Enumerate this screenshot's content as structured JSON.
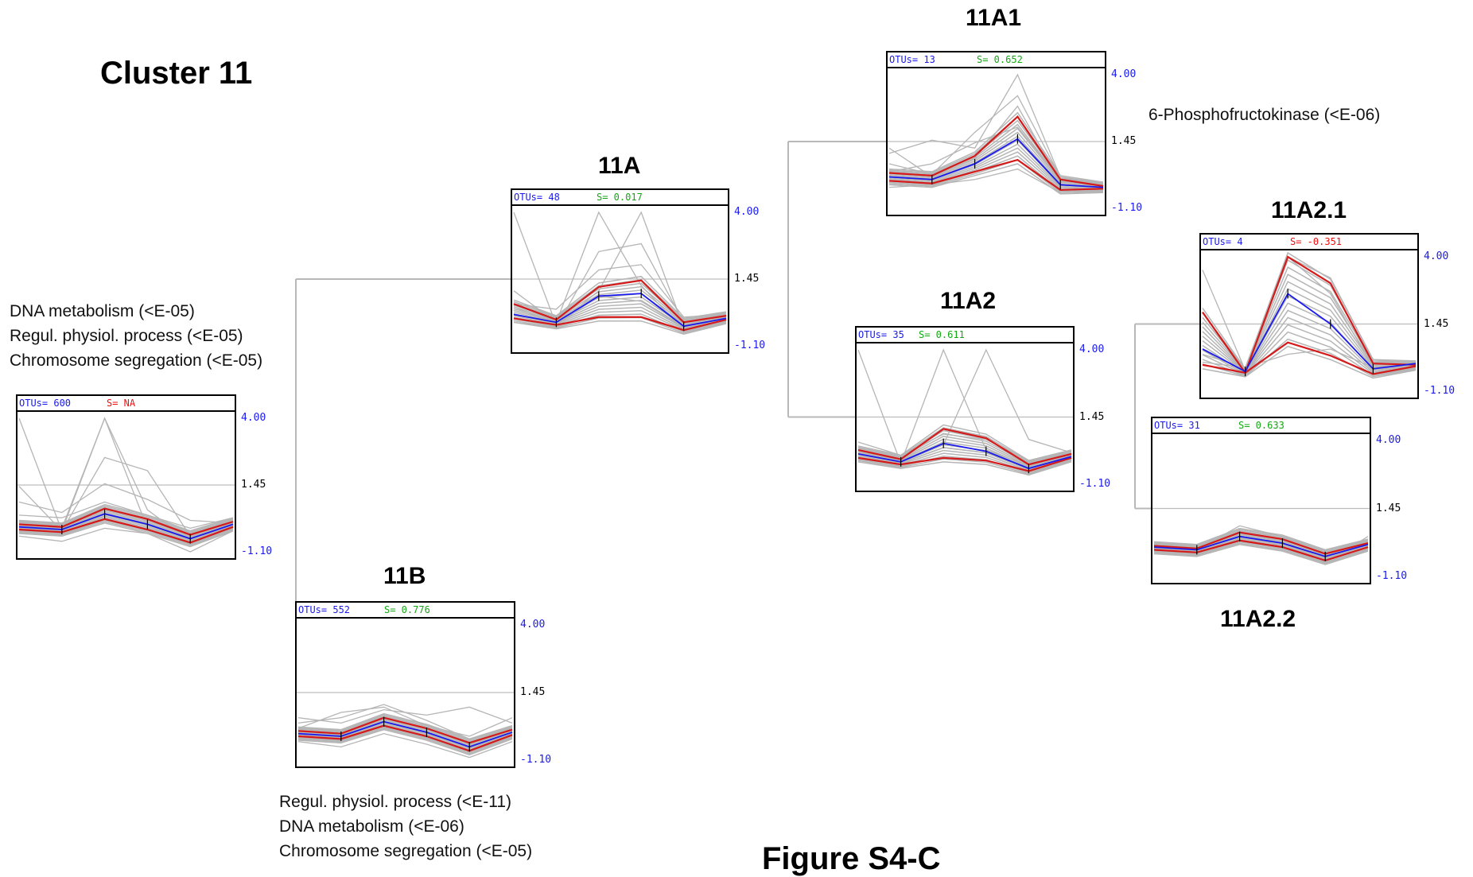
{
  "cluster_title": "Cluster 11",
  "figure_title": "Figure S4-C",
  "colors": {
    "otus_text": "#1a1aee",
    "score_green": "#13a813",
    "score_red": "#ee1111",
    "series_gray": "#b5b5b5",
    "median_blue": "#1a1aee",
    "quartile_red": "#d41a1a",
    "connector": "#b8b8b8",
    "axis_tick_blue": "#1a1aee",
    "axis_tick_black": "#000000"
  },
  "annotations": {
    "root": [
      "DNA metabolism (<E-05)",
      "Regul. physiol. process (<E-05)",
      "Chromosome segregation (<E-05)"
    ],
    "n11B": [
      "Regul. physiol. process (<E-11)",
      "DNA metabolism (<E-06)",
      "Chromosome segregation (<E-05)"
    ],
    "n11A1": [
      "6-Phosphofructokinase (<E-06)"
    ]
  },
  "chart_data": [
    {
      "id": "root",
      "type": "line",
      "title": "",
      "header_otus": "OTUs= 600",
      "header_score": "S= NA",
      "score_color": "red",
      "y_ticks": [
        "4.00",
        "1.45",
        "-1.10"
      ],
      "ylim": [
        -1.1,
        4.0
      ],
      "x": [
        1,
        2,
        3,
        4,
        5,
        6
      ],
      "median": [
        -0.15,
        -0.25,
        0.35,
        -0.05,
        -0.6,
        -0.05
      ],
      "upper": [
        -0.05,
        -0.15,
        0.55,
        0.15,
        -0.45,
        0.05
      ],
      "lower": [
        -0.25,
        -0.35,
        0.15,
        -0.25,
        -0.75,
        -0.15
      ],
      "gray_profiles": [
        [
          4.0,
          -0.3,
          4.0,
          -0.2,
          -0.6,
          0
        ],
        [
          -0.1,
          -0.2,
          4.0,
          0.5,
          -0.7,
          0
        ],
        [
          1.4,
          -0.3,
          2.5,
          2.0,
          -0.5,
          -0.1
        ],
        [
          0.3,
          0.2,
          0.8,
          0.3,
          -0.2,
          0.2
        ],
        [
          0.8,
          0.4,
          1.5,
          0.9,
          0.1,
          0
        ],
        [
          -0.5,
          -0.7,
          -0.2,
          -0.4,
          -1.1,
          -0.3
        ]
      ]
    },
    {
      "id": "11A",
      "type": "line",
      "title": "11A",
      "header_otus": "OTUs= 48",
      "header_score": "S= 0.017",
      "score_color": "green",
      "y_ticks": [
        "4.00",
        "1.45",
        "-1.10"
      ],
      "ylim": [
        -1.1,
        4.0
      ],
      "x": [
        1,
        2,
        3,
        4,
        5,
        6
      ],
      "median": [
        0.1,
        -0.2,
        0.8,
        0.9,
        -0.35,
        -0.05
      ],
      "upper": [
        0.5,
        -0.1,
        1.15,
        1.4,
        -0.2,
        0.05
      ],
      "lower": [
        -0.05,
        -0.3,
        0.0,
        0.0,
        -0.5,
        -0.1
      ],
      "gray_profiles": [
        [
          4.0,
          -0.3,
          0.8,
          0.6,
          -0.4,
          0
        ],
        [
          1.0,
          -0.2,
          4.0,
          1.2,
          -0.5,
          0
        ],
        [
          0.4,
          -0.3,
          1.0,
          4.0,
          -0.4,
          0
        ],
        [
          -0.2,
          -0.4,
          2.5,
          2.8,
          -0.2,
          0.1
        ],
        [
          0.5,
          0.3,
          1.8,
          2.0,
          0,
          0.1
        ]
      ]
    },
    {
      "id": "11B",
      "type": "line",
      "title": "11B",
      "header_otus": "OTUs= 552",
      "header_score": "S= 0.776",
      "score_color": "green",
      "y_ticks": [
        "4.00",
        "1.45",
        "-1.10"
      ],
      "ylim": [
        -1.1,
        4.0
      ],
      "x": [
        1,
        2,
        3,
        4,
        5,
        6
      ],
      "median": [
        -0.1,
        -0.2,
        0.35,
        -0.05,
        -0.6,
        -0.05
      ],
      "upper": [
        0.0,
        -0.1,
        0.5,
        0.1,
        -0.45,
        0.05
      ],
      "lower": [
        -0.2,
        -0.3,
        0.2,
        -0.2,
        -0.75,
        -0.15
      ],
      "gray_profiles": [
        [
          0.3,
          0.5,
          1.0,
          0.4,
          -0.3,
          0.2
        ],
        [
          0.1,
          0.7,
          0.9,
          0.2,
          -0.2,
          0.5
        ],
        [
          -0.4,
          -0.6,
          -0.1,
          -0.5,
          -1.0,
          -0.4
        ],
        [
          0.5,
          0.3,
          0.8,
          0.6,
          0.9,
          0.3
        ]
      ]
    },
    {
      "id": "11A1",
      "type": "line",
      "title": "11A1",
      "header_otus": "OTUs= 13",
      "header_score": "S= 0.652",
      "score_color": "green",
      "y_ticks": [
        "4.00",
        "1.45",
        "-1.10"
      ],
      "ylim": [
        -1.1,
        4.0
      ],
      "x": [
        1,
        2,
        3,
        4,
        5,
        6
      ],
      "median": [
        0.1,
        0.0,
        0.6,
        1.55,
        -0.2,
        -0.3
      ],
      "upper": [
        0.25,
        0.15,
        0.9,
        2.4,
        0.0,
        -0.25
      ],
      "lower": [
        -0.05,
        -0.15,
        0.3,
        0.75,
        -0.4,
        -0.35
      ],
      "gray_profiles": [
        [
          1.0,
          1.5,
          1.2,
          4.0,
          0.1,
          -0.2
        ],
        [
          0.6,
          0.2,
          1.8,
          3.2,
          0.1,
          -0.3
        ],
        [
          1.2,
          0.1,
          0.8,
          2.8,
          -0.1,
          -0.3
        ],
        [
          0.3,
          0.6,
          1.4,
          2.0,
          0.0,
          -0.2
        ],
        [
          -0.3,
          -0.2,
          0.0,
          0.4,
          -0.5,
          -0.3
        ]
      ]
    },
    {
      "id": "11A2",
      "type": "line",
      "title": "11A2",
      "header_otus": "OTUs= 35",
      "header_score": "S= 0.611",
      "score_color": "green",
      "y_ticks": [
        "4.00",
        "1.45",
        "-1.10"
      ],
      "ylim": [
        -1.1,
        4.0
      ],
      "x": [
        1,
        2,
        3,
        4,
        5,
        6
      ],
      "median": [
        0.05,
        -0.25,
        0.45,
        0.15,
        -0.5,
        -0.05
      ],
      "upper": [
        0.2,
        -0.15,
        1.0,
        0.65,
        -0.35,
        0.05
      ],
      "lower": [
        -0.1,
        -0.35,
        -0.1,
        -0.2,
        -0.6,
        -0.1
      ],
      "gray_profiles": [
        [
          4.0,
          -0.3,
          0.3,
          0.1,
          -0.5,
          0
        ],
        [
          0.2,
          -0.3,
          4.0,
          0.2,
          -0.4,
          0
        ],
        [
          0.1,
          -0.2,
          0.4,
          4.0,
          0.6,
          0.1
        ],
        [
          0.5,
          0.0,
          0.8,
          0.6,
          -0.2,
          0.2
        ]
      ]
    },
    {
      "id": "11A2.1",
      "type": "line",
      "title": "11A2.1",
      "header_otus": "OTUs= 4",
      "header_score": "S= -0.351",
      "score_color": "red",
      "y_ticks": [
        "4.00",
        "1.45",
        "-1.10"
      ],
      "ylim": [
        -1.1,
        4.0
      ],
      "x": [
        1,
        2,
        3,
        4,
        5,
        6
      ],
      "median": [
        0.5,
        -0.35,
        2.6,
        1.45,
        -0.25,
        -0.05
      ],
      "upper": [
        1.9,
        -0.4,
        4.0,
        3.0,
        -0.05,
        -0.1
      ],
      "lower": [
        -0.1,
        -0.4,
        0.75,
        0.25,
        -0.45,
        -0.15
      ],
      "gray_profiles": [
        [
          3.5,
          -0.3,
          4.0,
          2.6,
          -0.2,
          -0.1
        ],
        [
          0.0,
          -0.2,
          0.3,
          0.5,
          -0.2,
          -0.1
        ],
        [
          0.3,
          -0.2,
          4.0,
          3.2,
          0.1,
          0.0
        ]
      ]
    },
    {
      "id": "11A2.2",
      "type": "line",
      "title": "11A2.2",
      "header_otus": "OTUs= 31",
      "header_score": "S= 0.633",
      "score_color": "green",
      "y_ticks": [
        "4.00",
        "1.45",
        "-1.10"
      ],
      "ylim": [
        -1.1,
        4.0
      ],
      "x": [
        1,
        2,
        3,
        4,
        5,
        6
      ],
      "median": [
        0.0,
        -0.1,
        0.4,
        0.15,
        -0.35,
        0.1
      ],
      "upper": [
        0.05,
        -0.05,
        0.55,
        0.3,
        -0.25,
        0.15
      ],
      "lower": [
        -0.1,
        -0.2,
        0.25,
        0.0,
        -0.5,
        0.0
      ],
      "gray_profiles": [
        [
          0.1,
          -0.1,
          0.8,
          0.4,
          -0.2,
          0.2
        ],
        [
          -0.1,
          -0.2,
          0.2,
          0.3,
          -0.6,
          0.4
        ],
        [
          0.0,
          0.0,
          0.6,
          0.0,
          -0.4,
          0.1
        ]
      ]
    }
  ]
}
